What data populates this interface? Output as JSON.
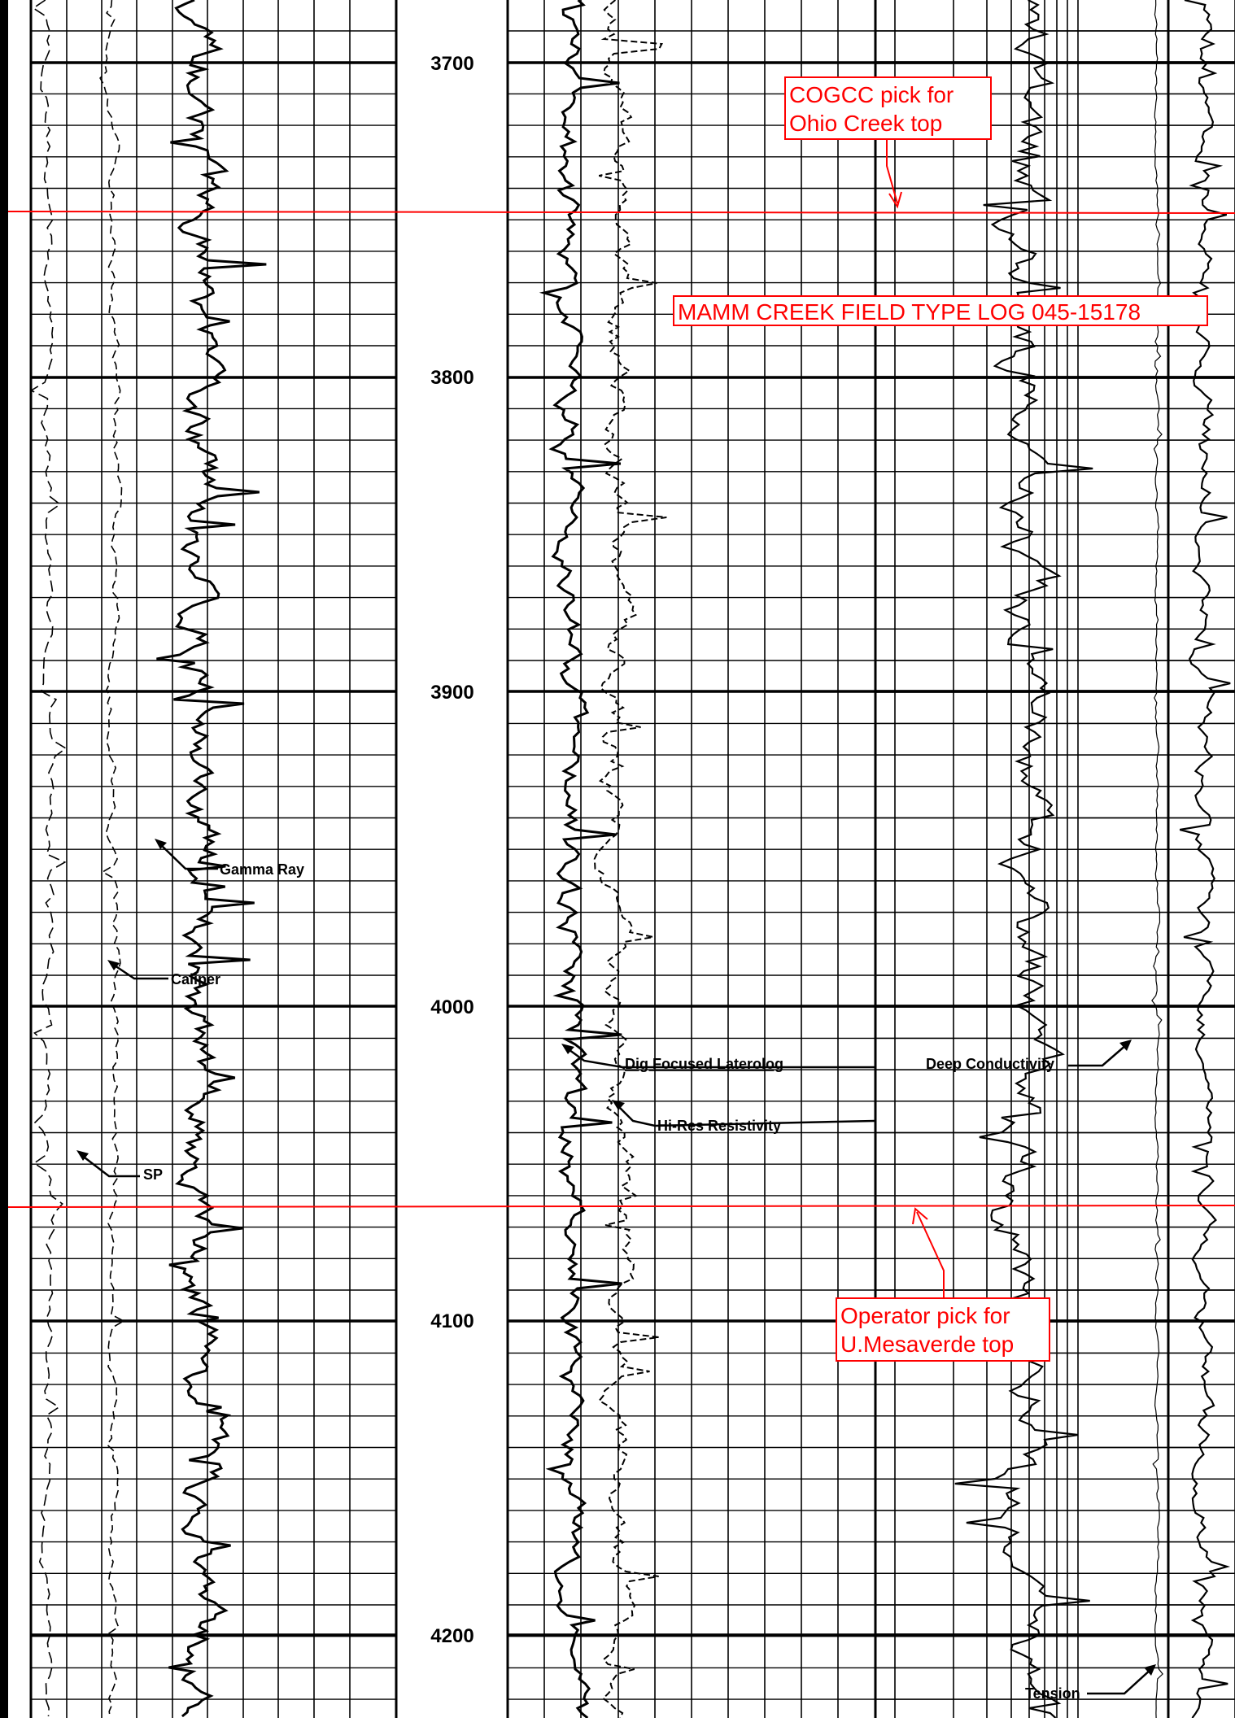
{
  "depth_track": {
    "labels": [
      "3700",
      "3800",
      "3900",
      "4000",
      "4100",
      "4200"
    ]
  },
  "curve_labels": {
    "gamma_ray": "Gamma Ray",
    "caliper": "Caliper",
    "sp": "SP",
    "dual_focused_laterolog": "Dig Focused Laterolog",
    "hi_res_resistivity": "Hi-Res Resistivity",
    "deep_conductivity": "Deep Conductivity",
    "tension": "Tension"
  },
  "annotations": {
    "cogcc_pick": [
      "COGCC pick for",
      "Ohio Creek top"
    ],
    "type_log": "MAMM CREEK FIELD TYPE LOG 045-15178",
    "operator_pick": [
      "Operator pick for",
      "U.Mesaverde top"
    ]
  },
  "colors": {
    "grid": "#000000",
    "pick_line": "#ff0000",
    "annotation": "#ff0000",
    "curve": "#000000"
  }
}
